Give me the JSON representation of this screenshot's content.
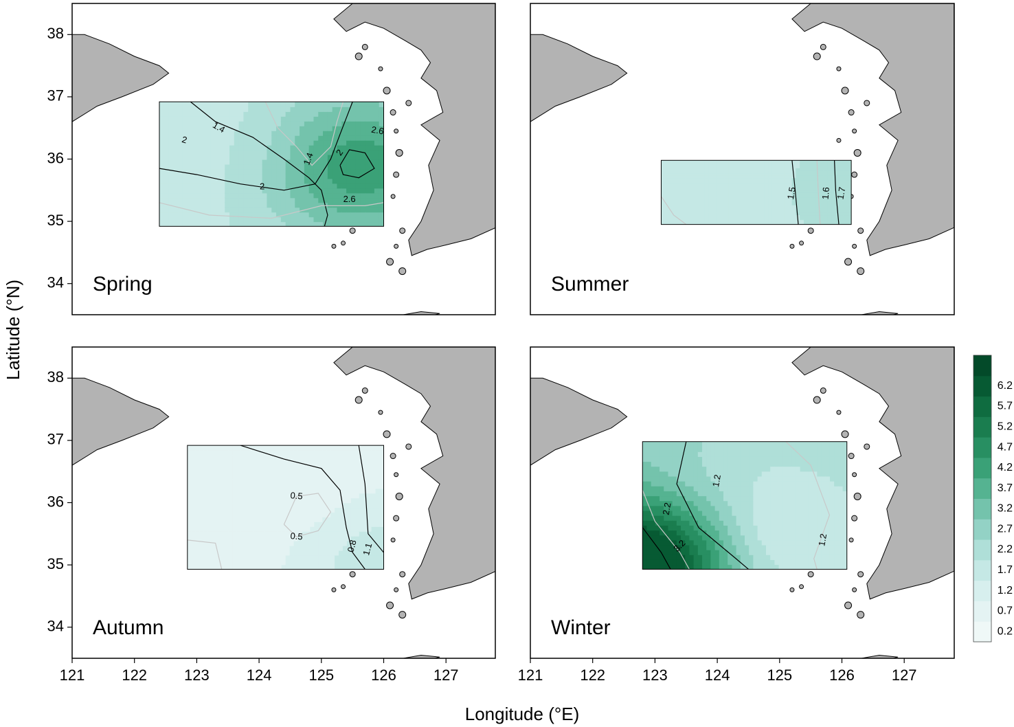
{
  "chart_data": {
    "type": "heatmap",
    "subtype": "contour-map-panels",
    "xlabel": "Longitude (°E)",
    "ylabel": "Latitude (°N)",
    "xlim": [
      121,
      127.8
    ],
    "ylim": [
      33.5,
      38.5
    ],
    "x_ticks": [
      "121",
      "122",
      "123",
      "124",
      "125",
      "126",
      "127"
    ],
    "y_ticks": [
      "34",
      "35",
      "36",
      "37",
      "38"
    ],
    "colorbar": {
      "levels": [
        "0.2",
        "0.7",
        "1.2",
        "1.7",
        "2.2",
        "2.7",
        "3.2",
        "3.7",
        "4.2",
        "4.7",
        "5.2",
        "5.7",
        "6.2"
      ],
      "colors": [
        "#eff8f7",
        "#e4f3f3",
        "#d7efee",
        "#c5e8e5",
        "#afdfd8",
        "#93d2c5",
        "#74c3ac",
        "#55b391",
        "#3aa177",
        "#288f62",
        "#1a7d4f",
        "#0f6c40",
        "#075a33",
        "#034a29"
      ]
    },
    "panels": [
      {
        "label": "Spring",
        "region": {
          "lon": [
            122.4,
            126.0
          ],
          "lat": [
            34.92,
            36.92
          ]
        },
        "contour_labels": [
          "1.4",
          "1.4",
          "2",
          "2",
          "2",
          "2.6",
          "2.6"
        ],
        "hotspots": [
          {
            "lon": 125.5,
            "lat": 35.9,
            "value": 3.7
          }
        ],
        "cold_spot": {
          "lon": 124.4,
          "lat": 36.1,
          "value": 1.0
        }
      },
      {
        "label": "Summer",
        "region": {
          "lon": [
            123.1,
            126.15
          ],
          "lat": [
            34.95,
            35.98
          ]
        },
        "contour_labels": [
          "1.5",
          "1.6",
          "1.7"
        ],
        "hotspots": [
          {
            "lon": 126.1,
            "lat": 35.5,
            "value": 1.9
          }
        ],
        "cold_spot": {
          "lon": 124.7,
          "lat": 35.5,
          "value": 1.3
        }
      },
      {
        "label": "Autumn",
        "region": {
          "lon": [
            122.85,
            126.0
          ],
          "lat": [
            34.93,
            36.92
          ]
        },
        "contour_labels": [
          "0.5",
          "0.5",
          "0.8",
          "1.1"
        ],
        "hotspots": [
          {
            "lon": 126.0,
            "lat": 35.0,
            "value": 1.4
          }
        ],
        "cold_spot": {
          "lon": 124.9,
          "lat": 35.9,
          "value": 0.3
        }
      },
      {
        "label": "Winter",
        "region": {
          "lon": [
            122.8,
            126.08
          ],
          "lat": [
            34.93,
            36.98
          ]
        },
        "contour_labels": [
          "1.2",
          "2.2",
          "3.2",
          "1.2"
        ],
        "hotspots": [
          {
            "lon": 122.8,
            "lat": 35.0,
            "value": 6.0
          }
        ],
        "cold_spot": {
          "lon": 124.9,
          "lat": 35.5,
          "value": 0.9
        }
      }
    ]
  }
}
